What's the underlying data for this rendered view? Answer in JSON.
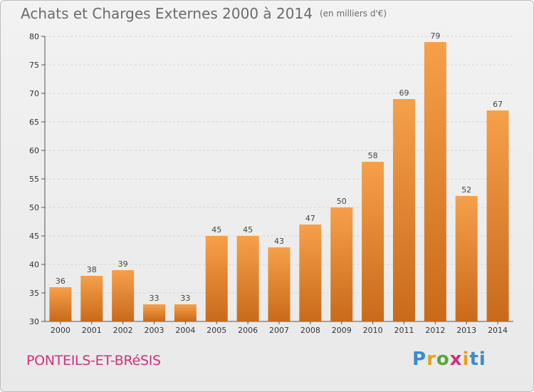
{
  "header": {
    "title": "Achats et Charges Externes 2000 à 2014",
    "unit": "(en milliers d'€)"
  },
  "footer": {
    "commune": "PONTEILS-ET-BRéSIS",
    "logo": "Proxiti"
  },
  "colors": {
    "bar_light": "#f6a04a",
    "bar_dark": "#c96a1a",
    "commune": "#d0337a"
  },
  "chart_data": {
    "type": "bar",
    "title": "Achats et Charges Externes 2000 à 2014",
    "subtitle": "(en milliers d'€)",
    "xlabel": "",
    "ylabel": "",
    "categories": [
      "2000",
      "2001",
      "2002",
      "2003",
      "2004",
      "2005",
      "2006",
      "2007",
      "2008",
      "2009",
      "2010",
      "2011",
      "2012",
      "2013",
      "2014"
    ],
    "values": [
      36,
      38,
      39,
      33,
      33,
      45,
      45,
      43,
      47,
      50,
      58,
      69,
      79,
      52,
      67
    ],
    "ylim": [
      30,
      80
    ],
    "yticks": [
      30,
      35,
      40,
      45,
      50,
      55,
      60,
      65,
      70,
      75,
      80
    ],
    "grid": true,
    "legend": "none"
  }
}
